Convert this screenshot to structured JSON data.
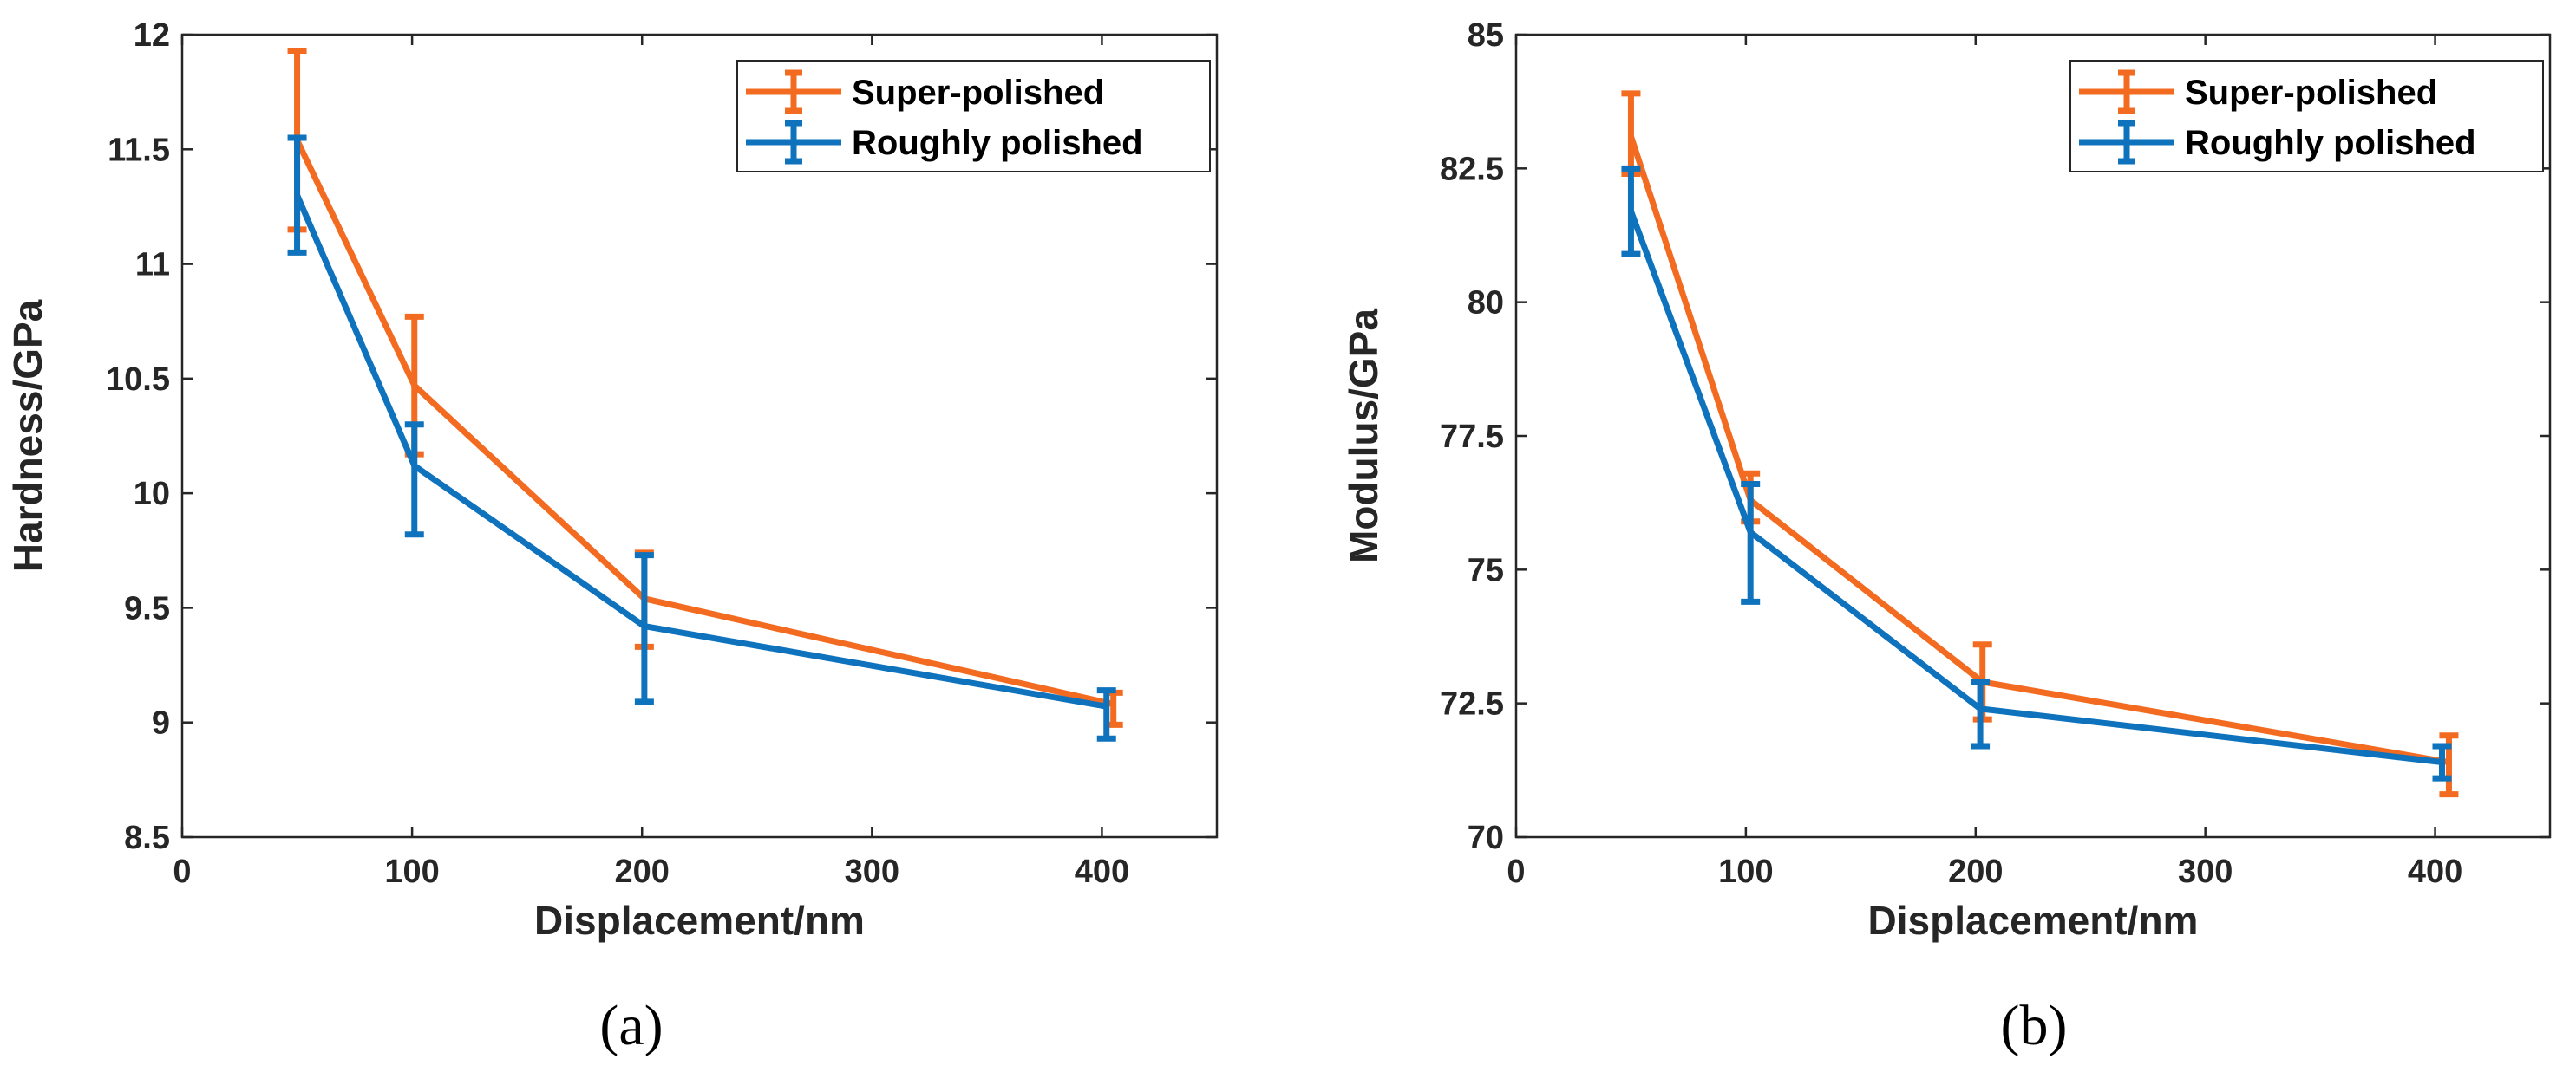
{
  "colors": {
    "super": "#f26b21",
    "rough": "#0e72bd",
    "axis": "#262626"
  },
  "chart_data": [
    {
      "type": "line",
      "panel_label": "(a)",
      "xlabel": "Displacement/nm",
      "ylabel": "Hardness/GPa",
      "xlim": [
        0,
        450
      ],
      "ylim": [
        8.5,
        12
      ],
      "xticks": [
        0,
        100,
        200,
        300,
        400
      ],
      "xtick_labels": [
        "0",
        "100",
        "200",
        "300",
        "400"
      ],
      "yticks": [
        8.5,
        9,
        9.5,
        10,
        10.5,
        11,
        11.5,
        12
      ],
      "ytick_labels": [
        "8.5",
        "9",
        "9.5",
        "10",
        "10.5",
        "11",
        "11.5",
        "12"
      ],
      "legend_position": "top-right",
      "series": [
        {
          "name": "Super-polished",
          "x": [
            50,
            101,
            201,
            405
          ],
          "y": [
            11.54,
            10.47,
            9.54,
            9.08
          ],
          "err_low": [
            11.15,
            10.17,
            9.33,
            8.99
          ],
          "err_high": [
            11.93,
            10.77,
            9.74,
            9.13
          ]
        },
        {
          "name": "Roughly polished",
          "x": [
            50,
            101,
            201,
            402
          ],
          "y": [
            11.3,
            10.12,
            9.42,
            9.07
          ],
          "err_low": [
            11.05,
            9.82,
            9.09,
            8.93
          ],
          "err_high": [
            11.55,
            10.3,
            9.73,
            9.14
          ]
        }
      ]
    },
    {
      "type": "line",
      "panel_label": "(b)",
      "xlabel": "Displacement/nm",
      "ylabel": "Modulus/GPa",
      "xlim": [
        0,
        450
      ],
      "ylim": [
        70,
        85
      ],
      "xticks": [
        0,
        100,
        200,
        300,
        400
      ],
      "xtick_labels": [
        "0",
        "100",
        "200",
        "300",
        "400"
      ],
      "yticks": [
        70,
        72.5,
        75,
        77.5,
        80,
        82.5,
        85
      ],
      "ytick_labels": [
        "70",
        "72.5",
        "75",
        "77.5",
        "80",
        "82.5",
        "85"
      ],
      "legend_position": "top-right",
      "series": [
        {
          "name": "Super-polished",
          "x": [
            50,
            102,
            203,
            406
          ],
          "y": [
            83.1,
            76.3,
            72.9,
            71.4
          ],
          "err_low": [
            82.4,
            75.9,
            72.2,
            70.8
          ],
          "err_high": [
            83.9,
            76.8,
            73.6,
            71.9
          ]
        },
        {
          "name": "Roughly polished",
          "x": [
            50,
            102,
            202,
            403
          ],
          "y": [
            81.7,
            75.7,
            72.4,
            71.4
          ],
          "err_low": [
            80.9,
            74.4,
            71.7,
            71.1
          ],
          "err_high": [
            82.5,
            76.6,
            72.9,
            71.7
          ]
        }
      ]
    }
  ]
}
